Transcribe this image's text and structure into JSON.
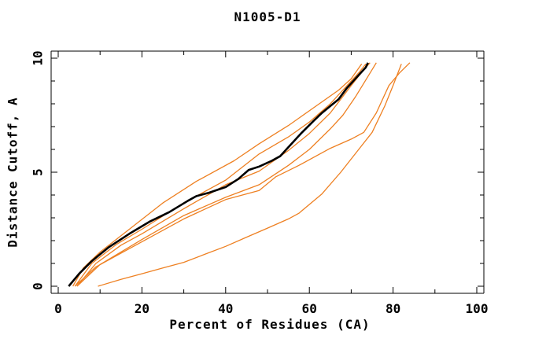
{
  "title": "N1005-D1",
  "chart_data": {
    "type": "line",
    "title": "N1005-D1",
    "xlabel": "Percent of Residues (CA)",
    "ylabel": "Distance Cutoff, A",
    "xlim": [
      0,
      100
    ],
    "ylim": [
      0,
      10
    ],
    "grid": false,
    "legend": "none",
    "x_major_ticks": [
      0,
      20,
      40,
      60,
      80,
      100
    ],
    "x_major_labels": [
      "0",
      "20",
      "40",
      "60",
      "80",
      "100"
    ],
    "x_minor_ticks": [
      10,
      30,
      50,
      70,
      90
    ],
    "y_major_ticks": [
      0,
      5,
      10
    ],
    "y_major_labels": [
      "0",
      "5",
      "10"
    ],
    "y_minor_ticks": [
      1,
      2,
      3,
      4,
      6,
      7,
      8,
      9
    ],
    "colors": {
      "reference": "#000000",
      "model": "#ee8022",
      "axis": "#000000",
      "background": "#ffffff"
    },
    "series": [
      {
        "name": "reference-curve",
        "role": "reference",
        "color": "#000000",
        "width": 2.6,
        "points": [
          [
            2.5,
            0
          ],
          [
            5,
            0.55
          ],
          [
            8,
            1.1
          ],
          [
            12,
            1.7
          ],
          [
            17,
            2.3
          ],
          [
            22,
            2.85
          ],
          [
            26.5,
            3.25
          ],
          [
            31,
            3.75
          ],
          [
            33,
            3.95
          ],
          [
            36,
            4.1
          ],
          [
            40,
            4.35
          ],
          [
            43,
            4.7
          ],
          [
            45.5,
            5.1
          ],
          [
            48,
            5.25
          ],
          [
            51,
            5.5
          ],
          [
            53,
            5.7
          ],
          [
            55,
            6.1
          ],
          [
            58,
            6.7
          ],
          [
            61,
            7.25
          ],
          [
            63,
            7.6
          ],
          [
            65,
            7.9
          ],
          [
            67,
            8.2
          ],
          [
            69,
            8.7
          ],
          [
            71,
            9.1
          ],
          [
            72.5,
            9.4
          ],
          [
            73.5,
            9.6
          ],
          [
            74,
            9.8
          ]
        ]
      },
      {
        "name": "model-curve-1",
        "role": "model",
        "color": "#ee8022",
        "width": 1.3,
        "points": [
          [
            3.5,
            0
          ],
          [
            6,
            0.8
          ],
          [
            10,
            1.5
          ],
          [
            17,
            2.5
          ],
          [
            25,
            3.65
          ],
          [
            33,
            4.6
          ],
          [
            42,
            5.5
          ],
          [
            48,
            6.25
          ],
          [
            55,
            7.05
          ],
          [
            62,
            7.95
          ],
          [
            67,
            8.6
          ],
          [
            70,
            9.1
          ],
          [
            72.5,
            9.75
          ]
        ]
      },
      {
        "name": "model-curve-2",
        "role": "model",
        "color": "#ee8022",
        "width": 1.3,
        "points": [
          [
            4,
            0
          ],
          [
            8,
            1.0
          ],
          [
            14,
            1.85
          ],
          [
            20,
            2.5
          ],
          [
            30,
            3.65
          ],
          [
            40,
            4.65
          ],
          [
            48,
            5.8
          ],
          [
            55,
            6.55
          ],
          [
            60,
            7.2
          ],
          [
            65,
            8.0
          ],
          [
            69,
            8.8
          ],
          [
            72,
            9.4
          ],
          [
            73.5,
            9.75
          ]
        ]
      },
      {
        "name": "model-curve-3",
        "role": "model",
        "color": "#ee8022",
        "width": 1.3,
        "points": [
          [
            4.5,
            0
          ],
          [
            9,
            1.0
          ],
          [
            15,
            1.8
          ],
          [
            20,
            2.3
          ],
          [
            30,
            3.4
          ],
          [
            40,
            4.45
          ],
          [
            48,
            5.05
          ],
          [
            55,
            5.95
          ],
          [
            60,
            6.7
          ],
          [
            65,
            7.6
          ],
          [
            70,
            8.8
          ],
          [
            73,
            9.5
          ],
          [
            74.5,
            9.8
          ]
        ]
      },
      {
        "name": "model-curve-4",
        "role": "model",
        "color": "#ee8022",
        "width": 1.3,
        "points": [
          [
            4.5,
            0
          ],
          [
            10,
            0.95
          ],
          [
            20,
            2.05
          ],
          [
            30,
            3.1
          ],
          [
            40,
            3.9
          ],
          [
            48,
            4.45
          ],
          [
            55,
            5.3
          ],
          [
            60,
            6.0
          ],
          [
            65,
            6.9
          ],
          [
            68,
            7.5
          ],
          [
            71,
            8.3
          ],
          [
            74,
            9.2
          ],
          [
            76,
            9.8
          ]
        ]
      },
      {
        "name": "model-curve-5",
        "role": "model",
        "color": "#ee8022",
        "width": 1.3,
        "points": [
          [
            4,
            0
          ],
          [
            9,
            0.85
          ],
          [
            20,
            1.95
          ],
          [
            30,
            2.95
          ],
          [
            40,
            3.8
          ],
          [
            48,
            4.2
          ],
          [
            52,
            4.8
          ],
          [
            57.5,
            5.3
          ],
          [
            65,
            6.05
          ],
          [
            70,
            6.45
          ],
          [
            73,
            6.75
          ],
          [
            76,
            7.6
          ],
          [
            79,
            8.8
          ],
          [
            81.5,
            9.35
          ],
          [
            84,
            9.8
          ]
        ]
      },
      {
        "name": "model-curve-6",
        "role": "model",
        "color": "#ee8022",
        "width": 1.3,
        "points": [
          [
            9.5,
            0
          ],
          [
            15,
            0.3
          ],
          [
            20,
            0.55
          ],
          [
            25,
            0.8
          ],
          [
            30,
            1.05
          ],
          [
            35,
            1.4
          ],
          [
            40,
            1.75
          ],
          [
            45,
            2.15
          ],
          [
            50,
            2.55
          ],
          [
            55,
            2.95
          ],
          [
            57.5,
            3.2
          ],
          [
            63,
            4.05
          ],
          [
            67.5,
            5.0
          ],
          [
            72,
            6.05
          ],
          [
            75,
            6.75
          ],
          [
            78,
            7.9
          ],
          [
            80,
            8.8
          ],
          [
            82,
            9.75
          ]
        ]
      }
    ]
  }
}
